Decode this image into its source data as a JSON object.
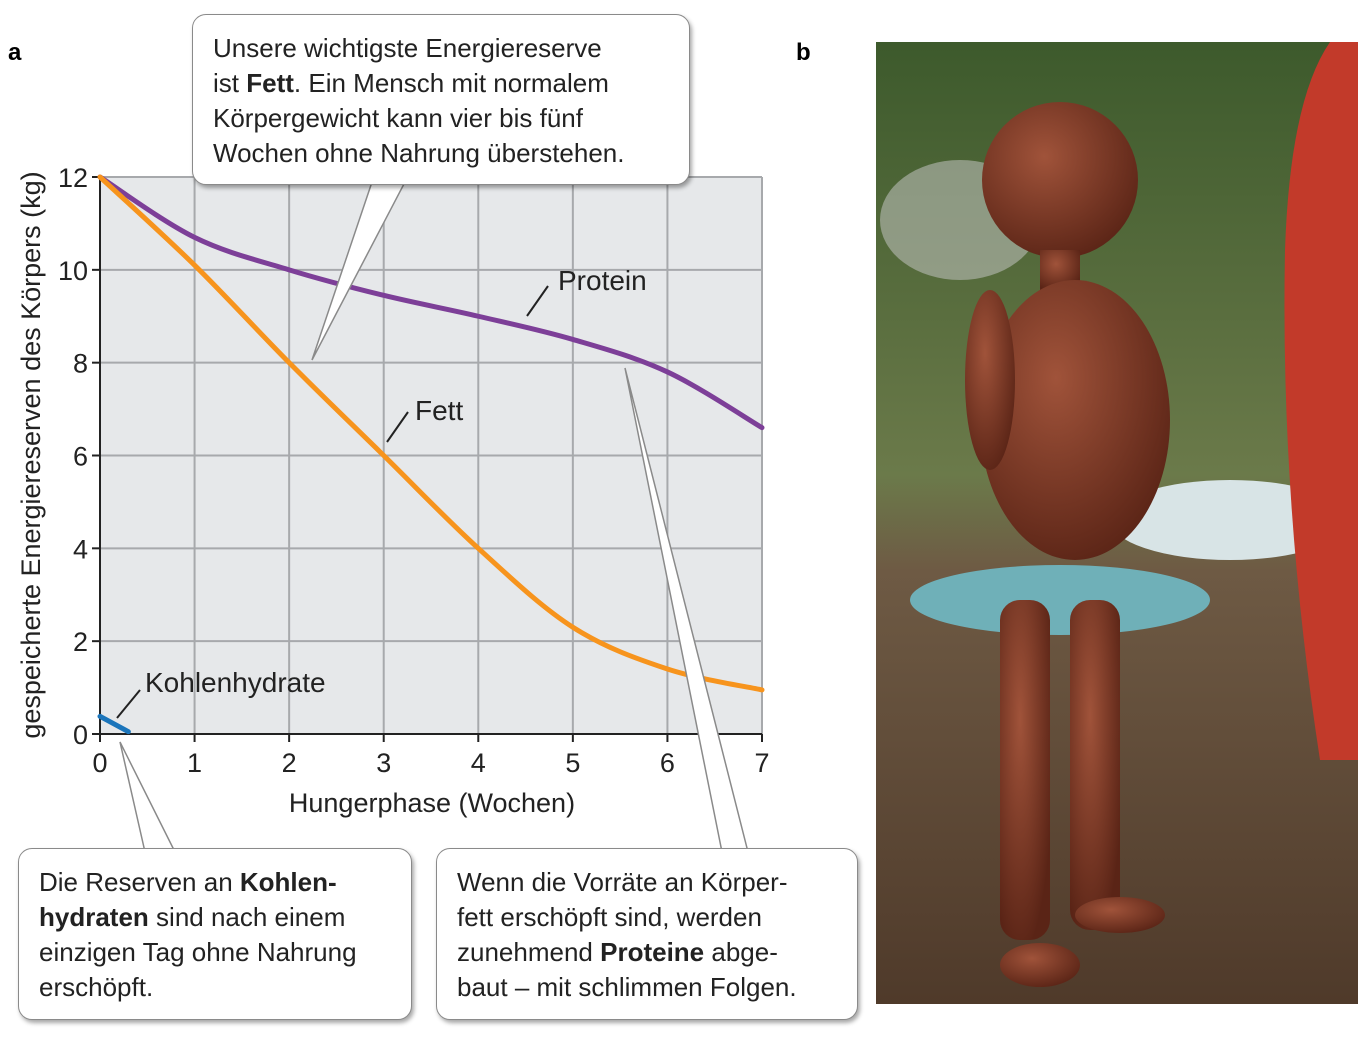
{
  "chart_data": {
    "type": "line",
    "panel_label": "a",
    "xlabel": "Hungerphase (Wochen)",
    "ylabel": "gespeicherte Energiereserven des Körpers (kg)",
    "xlim": [
      0,
      7
    ],
    "xticks": [
      0,
      1,
      2,
      3,
      4,
      5,
      6,
      7
    ],
    "ylim": [
      0,
      12
    ],
    "yticks": [
      0,
      2,
      4,
      6,
      8,
      10,
      12
    ],
    "grid": true,
    "series": [
      {
        "name": "Protein",
        "color": "#7d3f98",
        "x": [
          0,
          1,
          2,
          3,
          4,
          5,
          6,
          7
        ],
        "values": [
          12,
          10.7,
          10.0,
          9.45,
          9.0,
          8.5,
          7.8,
          6.6
        ]
      },
      {
        "name": "Fett",
        "color": "#f7941d",
        "x": [
          0,
          1,
          2,
          3,
          4,
          5,
          6,
          7
        ],
        "values": [
          12,
          10.1,
          8.0,
          6.0,
          4.0,
          2.3,
          1.4,
          0.95
        ]
      },
      {
        "name": "Kohlenhydrate",
        "color": "#1b75bb",
        "x": [
          0,
          0.3
        ],
        "values": [
          0.38,
          0.05
        ]
      }
    ]
  },
  "callouts": [
    {
      "lines": [
        [
          "Unsere wichtigste Energiereserve"
        ],
        [
          "ist ",
          {
            "bold": "Fett"
          },
          ". Ein Mensch mit normalem"
        ],
        [
          "Körpergewicht kann vier bis fünf"
        ],
        [
          "Wochen ohne Nahrung überstehen."
        ]
      ]
    },
    {
      "lines": [
        [
          "Die Reserven an ",
          {
            "bold": "Kohlen-"
          }
        ],
        [
          {
            "bold": "hydraten"
          },
          " sind nach einem"
        ],
        [
          "einzigen Tag ohne Nahrung"
        ],
        [
          "erschöpft."
        ]
      ]
    },
    {
      "lines": [
        [
          "Wenn die Vorräte an Körper-"
        ],
        [
          "fett erschöpft sind, werden"
        ],
        [
          "zunehmend ",
          {
            "bold": "Proteine"
          },
          " abge-"
        ],
        [
          "baut – mit schlimmen Folgen."
        ]
      ]
    }
  ],
  "photo": {
    "panel_label": "b"
  }
}
